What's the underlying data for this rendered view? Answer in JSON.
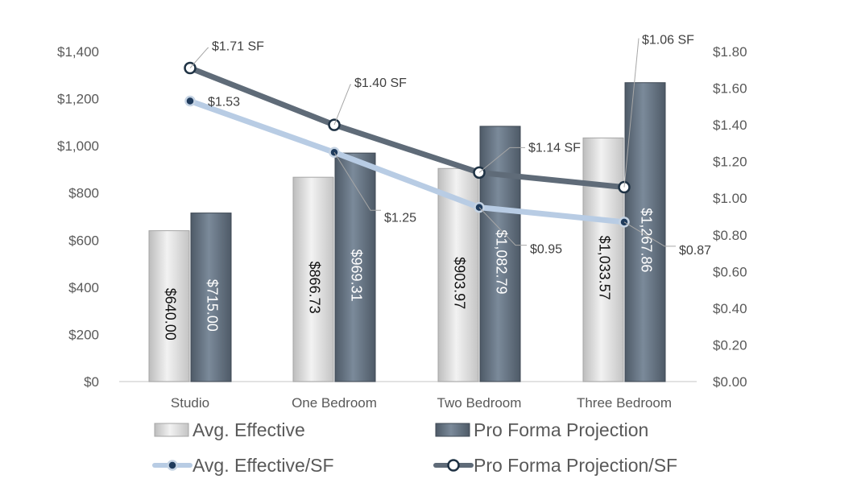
{
  "chart_data": {
    "type": "bar",
    "categories": [
      "Studio",
      "One Bedroom",
      "Two Bedroom",
      "Three Bedroom"
    ],
    "series": [
      {
        "name": "Avg. Effective",
        "kind": "bar",
        "axis": "left",
        "color": "#d6d6d6",
        "values": [
          640.0,
          866.73,
          903.97,
          1033.57
        ],
        "labels": [
          "$640.00",
          "$866.73",
          "$903.97",
          "$1,033.57"
        ]
      },
      {
        "name": "Pro Forma Projection",
        "kind": "bar",
        "axis": "left",
        "color": "#6b7a8a",
        "values": [
          715.0,
          969.31,
          1082.79,
          1267.86
        ],
        "labels": [
          "$715.00",
          "$969.31",
          "$1,082.79",
          "$1,267.86"
        ]
      },
      {
        "name": "Avg. Effective/SF",
        "kind": "line",
        "axis": "right",
        "color": "#b8cce4",
        "values": [
          1.53,
          1.25,
          0.95,
          0.87
        ],
        "labels": [
          "$1.53",
          "$1.25",
          "$0.95",
          "$0.87"
        ]
      },
      {
        "name": "Pro Forma Projection/SF",
        "kind": "line",
        "axis": "right",
        "color": "#5f6b78",
        "values": [
          1.71,
          1.4,
          1.14,
          1.06
        ],
        "labels": [
          "$1.71 SF",
          "$1.40 SF",
          "$1.14 SF",
          "$1.06 SF"
        ]
      }
    ],
    "y_left": {
      "ylim": [
        0,
        1400
      ],
      "ticks": [
        "$0",
        "$200",
        "$400",
        "$600",
        "$800",
        "$1,000",
        "$1,200",
        "$1,400"
      ]
    },
    "y_right": {
      "ylim": [
        0,
        1.8
      ],
      "ticks": [
        "$0.00",
        "$0.20",
        "$0.40",
        "$0.60",
        "$0.80",
        "$1.00",
        "$1.20",
        "$1.40",
        "$1.60",
        "$1.80"
      ]
    },
    "grid": false,
    "legend": "bottom"
  }
}
